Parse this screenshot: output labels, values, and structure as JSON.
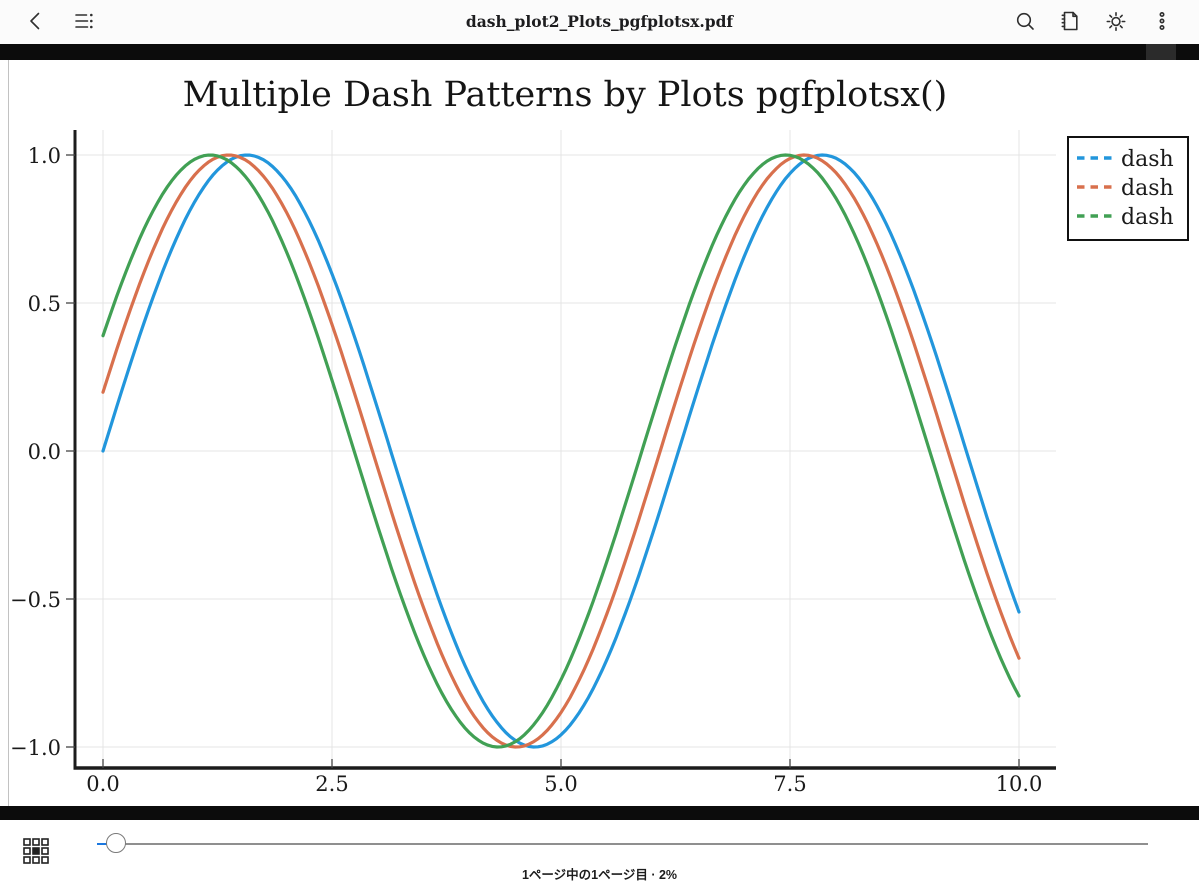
{
  "toolbar": {
    "title": "dash_plot2_Plots_pgfplotsx.pdf"
  },
  "icons": {
    "back": "chevron-left",
    "contents": "list-outline",
    "search": "magnifier",
    "notes": "notebook-with-folded-corner",
    "brightness": "sun",
    "more": "vertical-ellipsis",
    "bookmark": "bookmark-ribbon",
    "thumbnails": "grid-3x3-center-filled"
  },
  "footer": {
    "status": "1ページ中の1ページ目 · 2%",
    "slider_progress_percent": 2
  },
  "chart_data": {
    "type": "line",
    "title": "Multiple Dash Patterns by Plots pgfplotsx()",
    "xlabel": "",
    "ylabel": "",
    "xlim": [
      -0.3,
      10.4
    ],
    "ylim": [
      -1.08,
      1.08
    ],
    "grid": true,
    "x_ticks": [
      {
        "value": 0,
        "label": "0.0"
      },
      {
        "value": 2.5,
        "label": "2.5"
      },
      {
        "value": 5,
        "label": "5.0"
      },
      {
        "value": 7.5,
        "label": "7.5"
      },
      {
        "value": 10,
        "label": "10.0"
      }
    ],
    "y_ticks": [
      {
        "value": 1,
        "label": "1.0"
      },
      {
        "value": 0.5,
        "label": "0.5"
      },
      {
        "value": 0,
        "label": "0.0"
      },
      {
        "value": -0.5,
        "label": "−0.5"
      },
      {
        "value": -1,
        "label": "−1.0"
      }
    ],
    "series": [
      {
        "name": "dash",
        "color": "#2296dc",
        "function": "sin(x + phase)",
        "phase": 0.0,
        "x_start": 0,
        "x_end": 10
      },
      {
        "name": "dash",
        "color": "#d8704d",
        "function": "sin(x + phase)",
        "phase": 0.2,
        "x_start": 0,
        "x_end": 10
      },
      {
        "name": "dash",
        "color": "#41a054",
        "function": "sin(x + phase)",
        "phase": 0.4,
        "x_start": 0,
        "x_end": 10
      }
    ],
    "legend": {
      "position": "outer-top-right",
      "border": "#111111",
      "swatch_style": "dashed"
    }
  }
}
